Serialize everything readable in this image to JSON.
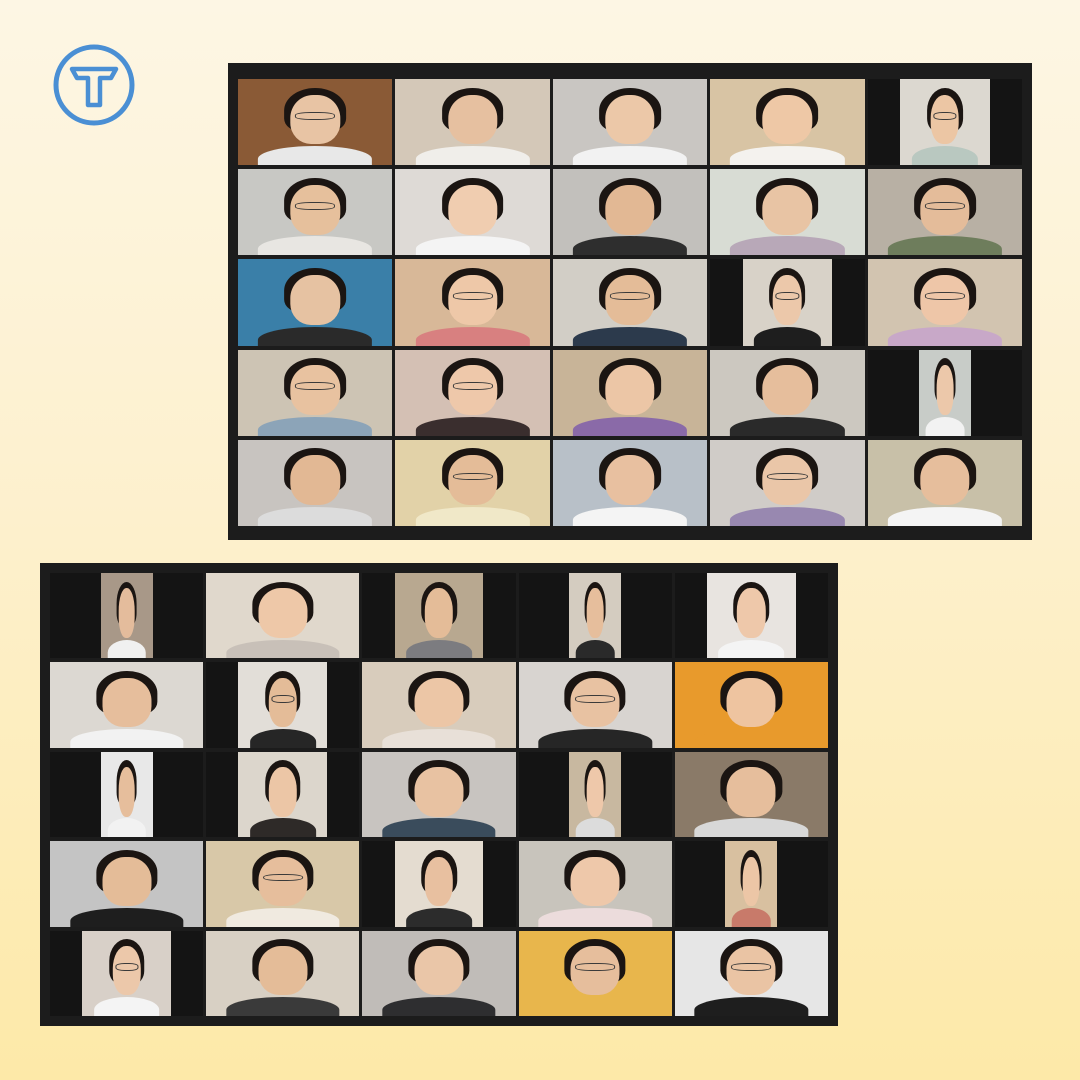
{
  "brand": {
    "logo_icon": "t-monogram-icon",
    "accent": "#4a8fd4"
  },
  "galleries": [
    {
      "id": "top",
      "tiles": [
        {
          "bg": "#8a5a36",
          "skin": "#e8c4a4",
          "shirt": "#e8e8e8",
          "frame": "full",
          "glasses": true
        },
        {
          "bg": "#d4c8b8",
          "skin": "#e6c0a0",
          "shirt": "#f0eeea",
          "frame": "full",
          "active": true
        },
        {
          "bg": "#c9c6c2",
          "skin": "#ecc8a8",
          "shirt": "#f2f2f2",
          "frame": "full"
        },
        {
          "bg": "#d8c4a4",
          "skin": "#eec8a6",
          "shirt": "#f4f2ee",
          "frame": "full"
        },
        {
          "bg": "#dcd8d0",
          "skin": "#ecc6a4",
          "shirt": "#b9c8c0",
          "frame": "mid",
          "glasses": true
        },
        {
          "bg": "#c8c8c4",
          "skin": "#e6c09c",
          "shirt": "#e8e6e2",
          "frame": "full",
          "glasses": true
        },
        {
          "bg": "#dedad6",
          "skin": "#f0cdb0",
          "shirt": "#f4f4f4",
          "frame": "full"
        },
        {
          "bg": "#c2c0bc",
          "skin": "#e2b894",
          "shirt": "#2e2e2e",
          "frame": "full"
        },
        {
          "bg": "#d8dcd4",
          "skin": "#e8c4a4",
          "shirt": "#b8a8b8",
          "frame": "full"
        },
        {
          "bg": "#b8b0a4",
          "skin": "#e4bc9a",
          "shirt": "#6e7d5c",
          "frame": "full",
          "glasses": true
        },
        {
          "bg": "#3a7fa8",
          "skin": "#e6c2a2",
          "shirt": "#2a2a2a",
          "frame": "full"
        },
        {
          "bg": "#d8b898",
          "skin": "#eec8a8",
          "shirt": "#d88080",
          "frame": "full",
          "glasses": true
        },
        {
          "bg": "#d2cec6",
          "skin": "#e4bc98",
          "shirt": "#2c3a4c",
          "frame": "full",
          "glasses": true
        },
        {
          "bg": "#d8d2c8",
          "skin": "#ecc8aa",
          "shirt": "#1e1e1e",
          "frame": "mid",
          "glasses": true
        },
        {
          "bg": "#d2c4b0",
          "skin": "#eec6a8",
          "shirt": "#c8a8c8",
          "frame": "full",
          "glasses": true
        },
        {
          "bg": "#cdc4b4",
          "skin": "#e8c2a0",
          "shirt": "#8ca4b8",
          "frame": "full",
          "glasses": true
        },
        {
          "bg": "#d4c0b4",
          "skin": "#eec8aa",
          "shirt": "#3a2e2e",
          "frame": "full",
          "glasses": true
        },
        {
          "bg": "#c8b498",
          "skin": "#ecc6a6",
          "shirt": "#8a6aa8",
          "frame": "full"
        },
        {
          "bg": "#ccc8c0",
          "skin": "#e6be9c",
          "shirt": "#2a2a2a",
          "frame": "full"
        },
        {
          "bg": "#c8ccc8",
          "skin": "#ecc8aa",
          "shirt": "#f2f2f2",
          "frame": "narrow"
        },
        {
          "bg": "#c8c4c0",
          "skin": "#e2b894",
          "shirt": "#dcdcdc",
          "frame": "full"
        },
        {
          "bg": "#e2d2a8",
          "skin": "#e4bc98",
          "shirt": "#f0e8c8",
          "frame": "full",
          "glasses": true
        },
        {
          "bg": "#b8c0c8",
          "skin": "#e8c0a0",
          "shirt": "#f4f4f4",
          "frame": "full"
        },
        {
          "bg": "#d0ccc8",
          "skin": "#eac6a8",
          "shirt": "#9888b0",
          "frame": "full",
          "glasses": true
        },
        {
          "bg": "#c8c0a8",
          "skin": "#e6be9c",
          "shirt": "#f4f4f4",
          "frame": "full"
        }
      ]
    },
    {
      "id": "bottom",
      "tiles": [
        {
          "bg": "#a89888",
          "skin": "#e4bc9c",
          "shirt": "#f0f0f0",
          "frame": "narrow"
        },
        {
          "bg": "#e0d8cc",
          "skin": "#eec8a8",
          "shirt": "#c8c0b8",
          "frame": "full"
        },
        {
          "bg": "#b8a890",
          "skin": "#e4bc98",
          "shirt": "#7c7c80",
          "frame": "mid"
        },
        {
          "bg": "#d4ccc0",
          "skin": "#e6be9c",
          "shirt": "#2a2a2a",
          "frame": "narrow"
        },
        {
          "bg": "#e8e4e0",
          "skin": "#eec8aa",
          "shirt": "#f4f4f4",
          "frame": "mid"
        },
        {
          "bg": "#dcd8d2",
          "skin": "#e6be9c",
          "shirt": "#f2f2f2",
          "frame": "full"
        },
        {
          "bg": "#e2ded8",
          "skin": "#e4bc98",
          "shirt": "#262626",
          "frame": "mid",
          "glasses": true
        },
        {
          "bg": "#d8ccbc",
          "skin": "#ecc6a6",
          "shirt": "#e8e0d8",
          "frame": "full"
        },
        {
          "bg": "#d8d4d0",
          "skin": "#e8c2a2",
          "shirt": "#262626",
          "frame": "full",
          "glasses": true
        },
        {
          "bg": "#e89a2c",
          "skin": "#eec4a0",
          "shirt": "#e89a2c",
          "frame": "full"
        },
        {
          "bg": "#e8e8e8",
          "skin": "#e6be9c",
          "shirt": "#f2f2f2",
          "frame": "narrow"
        },
        {
          "bg": "#dcd6cc",
          "skin": "#ecc6a6",
          "shirt": "#2e2a28",
          "frame": "mid"
        },
        {
          "bg": "#c8c4c0",
          "skin": "#e8c2a2",
          "shirt": "#3a4c5c",
          "frame": "full"
        },
        {
          "bg": "#c8b8a0",
          "skin": "#eec8aa",
          "shirt": "#dcdcdc",
          "frame": "narrow"
        },
        {
          "bg": "#8a7a68",
          "skin": "#e6be9c",
          "shirt": "#d8d8d8",
          "frame": "full"
        },
        {
          "bg": "#c4c4c4",
          "skin": "#e4bc98",
          "shirt": "#1e1e1e",
          "frame": "full"
        },
        {
          "bg": "#d8c8a8",
          "skin": "#e6be9c",
          "shirt": "#f0eae0",
          "frame": "full",
          "glasses": true
        },
        {
          "bg": "#e4dcd0",
          "skin": "#e8c0a0",
          "shirt": "#2c2c2c",
          "frame": "mid"
        },
        {
          "bg": "#c8c4bc",
          "skin": "#eec8aa",
          "shirt": "#ecdcdc",
          "frame": "full"
        },
        {
          "bg": "#d8c0a0",
          "skin": "#ecc6a6",
          "shirt": "#c87a6a",
          "frame": "narrow"
        },
        {
          "bg": "#d8d0c8",
          "skin": "#ecc8aa",
          "shirt": "#f4f4f4",
          "frame": "mid",
          "glasses": true
        },
        {
          "bg": "#d8d0c4",
          "skin": "#e4bc98",
          "shirt": "#3a3a3a",
          "frame": "full"
        },
        {
          "bg": "#c0bcb8",
          "skin": "#eac6a8",
          "shirt": "#2e2e30",
          "frame": "full"
        },
        {
          "bg": "#e8b64c",
          "skin": "#e6be9c",
          "shirt": "#e8b64c",
          "frame": "full",
          "glasses": true
        },
        {
          "bg": "#e6e6e6",
          "skin": "#eac4a4",
          "shirt": "#1e1e1e",
          "frame": "full",
          "glasses": true
        }
      ]
    }
  ]
}
